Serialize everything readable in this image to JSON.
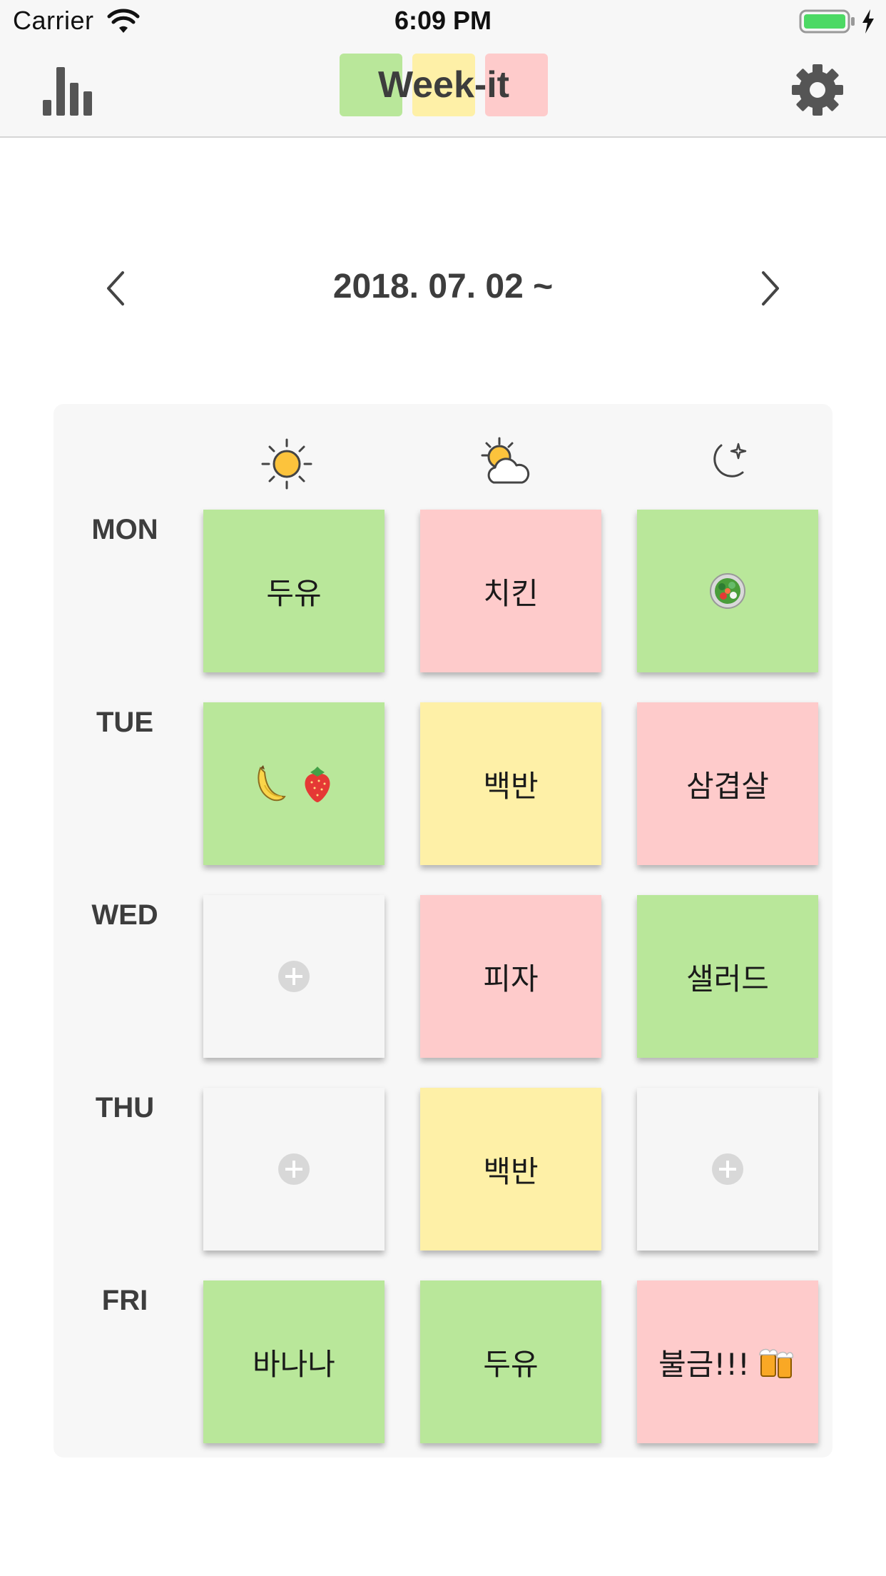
{
  "status_bar": {
    "carrier": "Carrier",
    "time": "6:09 PM"
  },
  "nav": {
    "logo_text": "Week-it",
    "left_icon": "bar-chart-icon",
    "right_icon": "gear-icon"
  },
  "week": {
    "label": "2018. 07. 02 ~",
    "prev_icon": "chevron-left-icon",
    "next_icon": "chevron-right-icon"
  },
  "periods": [
    "sun-icon",
    "sun-cloud-icon",
    "moon-star-icon"
  ],
  "colors": {
    "green": "#b9e79a",
    "yellow": "#fef0a7",
    "red": "#fecbcb",
    "empty": "#f6f6f6"
  },
  "days": [
    {
      "label": "MON",
      "cells": [
        {
          "color": "green",
          "text": "두유"
        },
        {
          "color": "red",
          "text": "치킨"
        },
        {
          "color": "green",
          "text": "",
          "emoji": "salad-icon"
        }
      ]
    },
    {
      "label": "TUE",
      "cells": [
        {
          "color": "green",
          "text": "",
          "emoji": "banana-strawberry-icon"
        },
        {
          "color": "yellow",
          "text": "백반"
        },
        {
          "color": "red",
          "text": "삼겹살"
        }
      ]
    },
    {
      "label": "WED",
      "cells": [
        {
          "color": "empty",
          "text": ""
        },
        {
          "color": "red",
          "text": "피자"
        },
        {
          "color": "green",
          "text": "샐러드"
        }
      ]
    },
    {
      "label": "THU",
      "cells": [
        {
          "color": "empty",
          "text": ""
        },
        {
          "color": "yellow",
          "text": "백반"
        },
        {
          "color": "empty",
          "text": ""
        }
      ]
    },
    {
      "label": "FRI",
      "cells": [
        {
          "color": "green",
          "text": "바나나"
        },
        {
          "color": "green",
          "text": "두유"
        },
        {
          "color": "red",
          "text": "불금!!!",
          "emoji": "beer-icon"
        }
      ]
    }
  ]
}
